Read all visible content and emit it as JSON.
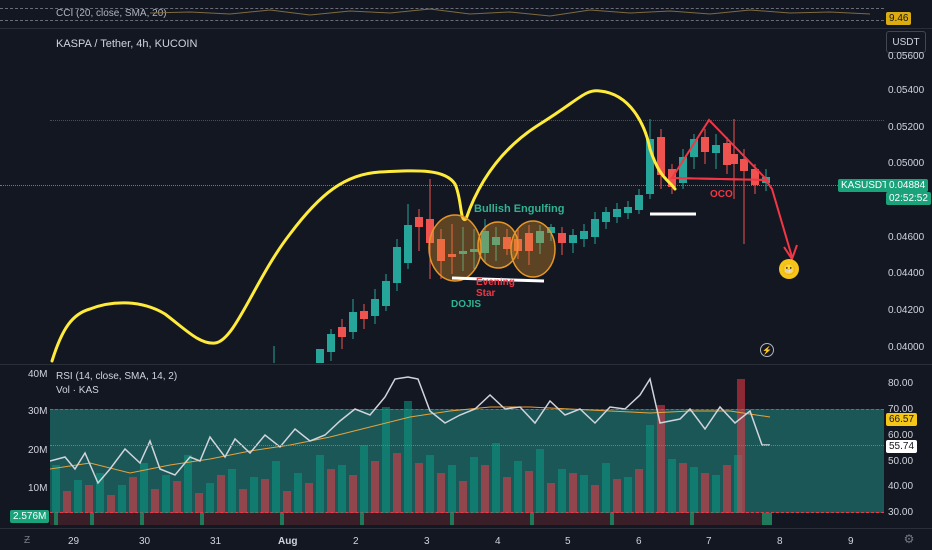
{
  "cci_panel": {
    "label": "CCI (20, close, SMA, 20)",
    "value": "9.46",
    "value_color": "#dbab12"
  },
  "main_panel": {
    "symbol": "KASPA / Tether, 4h, KUCOIN",
    "currency": "USDT",
    "price_axis": [
      "0.05600",
      "0.05400",
      "0.05200",
      "0.05000",
      "0.04600",
      "0.04400",
      "0.04200",
      "0.04000"
    ],
    "last_price_symbol": "KASUSDT",
    "last_price": "0.04884",
    "countdown": "02:52:52",
    "accent_color": "#1aa37a"
  },
  "annotations": {
    "bullish_engulfing": "Bullish Engulfing",
    "evening_star_line1": "Evening",
    "evening_star_line2": "Star",
    "dojis": "DOJIS",
    "oco": "OCO"
  },
  "rsi_panel": {
    "label": "RSI (14, close, SMA, 14, 2)",
    "volume_label": "Vol · KAS",
    "rsi_axis": [
      "80.00",
      "70.00",
      "60.00",
      "50.00",
      "40.00",
      "30.00"
    ],
    "rsi_value": "55.74",
    "rsi_ma_value": "66.57",
    "volume_axis": [
      "40M",
      "30M",
      "20M",
      "10M"
    ],
    "volume_value": "2.576M"
  },
  "time_axis": [
    "29",
    "30",
    "31",
    "Aug",
    "2",
    "3",
    "4",
    "5",
    "6",
    "7",
    "8",
    "9"
  ],
  "icons": {
    "timezone": "tv-logo-icon",
    "settings": "gear-icon",
    "alert": "lightning-icon",
    "emoji": "grimacing-face-icon"
  }
}
